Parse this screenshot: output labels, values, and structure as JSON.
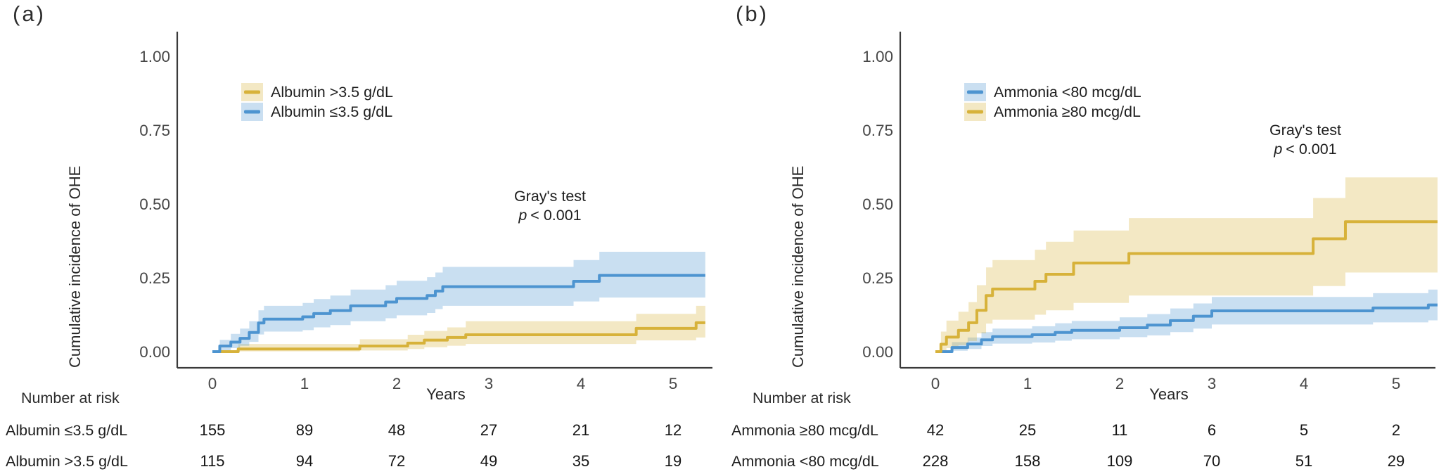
{
  "colors": {
    "background": "#ffffff",
    "axis": "#3a3a3a",
    "tick_text": "#474747",
    "text": "#1d1d1d",
    "blue_line": "#4d94d0",
    "blue_ribbon": "rgba(77,148,208,0.30)",
    "blue_swatch": "#cadff1",
    "yellow_line": "#d7b23a",
    "yellow_ribbon": "rgba(215,178,58,0.30)",
    "yellow_swatch": "#f3e8c4"
  },
  "chart_data": [
    {
      "type": "line",
      "subtype": "cumulative-incidence-step-curves-with-confidence-bands",
      "panel_label": "(a)",
      "ylabel": "Cumulative incidence of OHE",
      "xlabel": "Years",
      "xlim": [
        0,
        5.5
      ],
      "ylim": [
        0,
        1.0
      ],
      "xticks": [
        "0",
        "1",
        "2",
        "3",
        "4",
        "5"
      ],
      "yticks": [
        "0.00",
        "0.25",
        "0.50",
        "0.75",
        "1.00"
      ],
      "ytick_values": [
        0,
        0.25,
        0.5,
        0.75,
        1.0
      ],
      "grid": "off",
      "legend_position": "inside-top-left",
      "annotation": {
        "title": "Gray's test",
        "p_symbol": "p",
        "p_value": "< 0.001"
      },
      "legend": [
        {
          "label": "Albumin >3.5 g/dL",
          "line_color": "#d7b23a",
          "fill_color": "#f3e8c4"
        },
        {
          "label": "Albumin ≤3.5 g/dL",
          "line_color": "#4d94d0",
          "fill_color": "#cadff1"
        }
      ],
      "series": [
        {
          "name": "Albumin >3.5 g/dL",
          "line_color": "#d7b23a",
          "ribbon_color": "rgba(215,178,58,0.30)",
          "points_x_y_lo_hi": [
            [
              0,
              0,
              0,
              0
            ],
            [
              0.28,
              0.009,
              0.001,
              0.026
            ],
            [
              1.6,
              0.019,
              0.004,
              0.042
            ],
            [
              2.12,
              0.029,
              0.009,
              0.057
            ],
            [
              2.3,
              0.039,
              0.015,
              0.07
            ],
            [
              2.55,
              0.048,
              0.02,
              0.082
            ],
            [
              2.75,
              0.057,
              0.026,
              0.103
            ],
            [
              4.6,
              0.079,
              0.038,
              0.128
            ],
            [
              5.25,
              0.098,
              0.048,
              0.155
            ],
            [
              5.35,
              0.098,
              0.048,
              0.155
            ]
          ]
        },
        {
          "name": "Albumin ≤3.5 g/dL",
          "line_color": "#4d94d0",
          "ribbon_color": "rgba(77,148,208,0.30)",
          "points_x_y_lo_hi": [
            [
              0,
              0,
              0,
              0
            ],
            [
              0.08,
              0.019,
              0.004,
              0.04
            ],
            [
              0.2,
              0.032,
              0.012,
              0.06
            ],
            [
              0.3,
              0.045,
              0.02,
              0.078
            ],
            [
              0.4,
              0.065,
              0.033,
              0.103
            ],
            [
              0.5,
              0.097,
              0.058,
              0.14
            ],
            [
              0.56,
              0.11,
              0.068,
              0.155
            ],
            [
              0.98,
              0.118,
              0.073,
              0.165
            ],
            [
              1.1,
              0.129,
              0.082,
              0.178
            ],
            [
              1.28,
              0.139,
              0.09,
              0.19
            ],
            [
              1.5,
              0.155,
              0.103,
              0.21
            ],
            [
              1.88,
              0.168,
              0.113,
              0.225
            ],
            [
              2.0,
              0.18,
              0.123,
              0.24
            ],
            [
              2.33,
              0.19,
              0.131,
              0.252
            ],
            [
              2.42,
              0.205,
              0.144,
              0.268
            ],
            [
              2.5,
              0.22,
              0.155,
              0.287
            ],
            [
              3.92,
              0.238,
              0.17,
              0.31
            ],
            [
              4.2,
              0.258,
              0.183,
              0.338
            ],
            [
              5.35,
              0.258,
              0.183,
              0.338
            ]
          ]
        }
      ],
      "number_at_risk": {
        "title": "Number at risk",
        "rows": [
          {
            "label": "Albumin ≤3.5 g/dL",
            "values": [
              "155",
              "89",
              "48",
              "27",
              "21",
              "12"
            ]
          },
          {
            "label": "Albumin >3.5 g/dL",
            "values": [
              "115",
              "94",
              "72",
              "49",
              "35",
              "19"
            ]
          }
        ]
      }
    },
    {
      "type": "line",
      "subtype": "cumulative-incidence-step-curves-with-confidence-bands",
      "panel_label": "(b)",
      "ylabel": "Cumulative incidence of OHE",
      "xlabel": "Years",
      "xlim": [
        0,
        5.5
      ],
      "ylim": [
        0,
        1.0
      ],
      "xticks": [
        "0",
        "1",
        "2",
        "3",
        "4",
        "5"
      ],
      "yticks": [
        "0.00",
        "0.25",
        "0.50",
        "0.75",
        "1.00"
      ],
      "ytick_values": [
        0,
        0.25,
        0.5,
        0.75,
        1.0
      ],
      "grid": "off",
      "legend_position": "inside-top-left",
      "annotation": {
        "title": "Gray's test",
        "p_symbol": "p",
        "p_value": "< 0.001"
      },
      "legend": [
        {
          "label": "Ammonia <80 mcg/dL",
          "line_color": "#4d94d0",
          "fill_color": "#cadff1"
        },
        {
          "label": "Ammonia ≥80 mcg/dL",
          "line_color": "#d7b23a",
          "fill_color": "#f3e8c4"
        }
      ],
      "series": [
        {
          "name": "Ammonia <80 mcg/dL",
          "line_color": "#4d94d0",
          "ribbon_color": "rgba(77,148,208,0.30)",
          "points_x_y_lo_hi": [
            [
              0,
              0,
              0,
              0
            ],
            [
              0.18,
              0.014,
              0.003,
              0.032
            ],
            [
              0.35,
              0.026,
              0.009,
              0.048
            ],
            [
              0.5,
              0.04,
              0.019,
              0.066
            ],
            [
              0.62,
              0.051,
              0.027,
              0.078
            ],
            [
              1.05,
              0.057,
              0.031,
              0.086
            ],
            [
              1.3,
              0.065,
              0.037,
              0.096
            ],
            [
              1.48,
              0.072,
              0.042,
              0.104
            ],
            [
              2.0,
              0.081,
              0.049,
              0.116
            ],
            [
              2.3,
              0.09,
              0.055,
              0.127
            ],
            [
              2.55,
              0.105,
              0.066,
              0.146
            ],
            [
              2.8,
              0.12,
              0.078,
              0.163
            ],
            [
              3.0,
              0.138,
              0.092,
              0.185
            ],
            [
              4.75,
              0.148,
              0.099,
              0.198
            ],
            [
              5.35,
              0.158,
              0.106,
              0.21
            ],
            [
              5.45,
              0.158,
              0.106,
              0.21
            ]
          ]
        },
        {
          "name": "Ammonia ≥80 mcg/dL",
          "line_color": "#d7b23a",
          "ribbon_color": "rgba(215,178,58,0.30)",
          "points_x_y_lo_hi": [
            [
              0,
              0,
              0,
              0
            ],
            [
              0.06,
              0.025,
              0.004,
              0.068
            ],
            [
              0.12,
              0.049,
              0.012,
              0.105
            ],
            [
              0.25,
              0.072,
              0.022,
              0.135
            ],
            [
              0.36,
              0.098,
              0.036,
              0.168
            ],
            [
              0.45,
              0.14,
              0.062,
              0.225
            ],
            [
              0.55,
              0.19,
              0.095,
              0.285
            ],
            [
              0.62,
              0.212,
              0.108,
              0.31
            ],
            [
              1.08,
              0.238,
              0.125,
              0.345
            ],
            [
              1.2,
              0.262,
              0.14,
              0.372
            ],
            [
              1.5,
              0.3,
              0.165,
              0.41
            ],
            [
              2.1,
              0.332,
              0.19,
              0.452
            ],
            [
              4.1,
              0.382,
              0.222,
              0.52
            ],
            [
              4.45,
              0.44,
              0.268,
              0.59
            ],
            [
              5.45,
              0.44,
              0.268,
              0.59
            ]
          ]
        }
      ],
      "number_at_risk": {
        "title": "Number at risk",
        "rows": [
          {
            "label": "Ammonia ≥80 mcg/dL",
            "values": [
              "42",
              "25",
              "11",
              "6",
              "5",
              "2"
            ]
          },
          {
            "label": "Ammonia <80 mcg/dL",
            "values": [
              "228",
              "158",
              "109",
              "70",
              "51",
              "29"
            ]
          }
        ]
      }
    }
  ]
}
